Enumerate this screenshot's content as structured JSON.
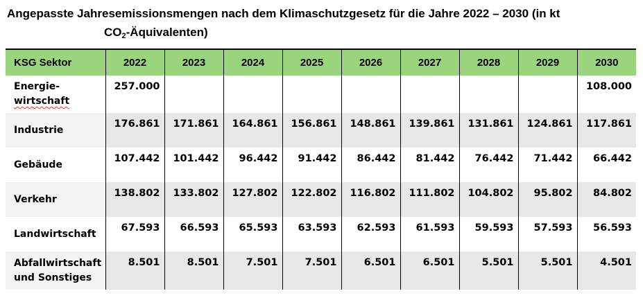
{
  "title": {
    "line1": "Angepasste Jahresemissionsmengen nach dem Klimaschutzgesetz für die Jahre 2022 – 2030 (in kt",
    "line2_pre": "CO",
    "line2_sub": "2",
    "line2_post": "-Äquivalenten)"
  },
  "table": {
    "header": {
      "sector": "KSG Sektor",
      "years": [
        "2022",
        "2023",
        "2024",
        "2025",
        "2026",
        "2027",
        "2028",
        "2029",
        "2030"
      ]
    },
    "rows": [
      {
        "sector_line1": "Energie-",
        "sector_line2": "wirtschaft",
        "values": [
          "257.000",
          "",
          "",
          "",
          "",
          "",
          "",
          "",
          "108.000"
        ]
      },
      {
        "sector_line1": "Industrie",
        "sector_line2": "",
        "values": [
          "176.861",
          "171.861",
          "164.861",
          "156.861",
          "148.861",
          "139.861",
          "131.861",
          "124.861",
          "117.861"
        ]
      },
      {
        "sector_line1": "Gebäude",
        "sector_line2": "",
        "values": [
          "107.442",
          "101.442",
          "96.442",
          "91.442",
          "86.442",
          "81.442",
          "76.442",
          "71.442",
          "66.442"
        ]
      },
      {
        "sector_line1": "Verkehr",
        "sector_line2": "",
        "values": [
          "138.802",
          "133.802",
          "127.802",
          "122.802",
          "116.802",
          "111.802",
          "104.802",
          "95.802",
          "84.802"
        ]
      },
      {
        "sector_line1": "Landwirtschaft",
        "sector_line2": "",
        "values": [
          "67.593",
          "66.593",
          "65.593",
          "63.593",
          "62.593",
          "61.593",
          "59.593",
          "57.593",
          "56.593"
        ]
      },
      {
        "sector_line1": "Abfallwirtschaft",
        "sector_line2": "und Sonstiges",
        "values": [
          "8.501",
          "8.501",
          "7.501",
          "7.501",
          "6.501",
          "6.501",
          "5.501",
          "5.501",
          "4.501"
        ]
      }
    ],
    "colors": {
      "header_bg": "#9AD57E",
      "band_cell_bg": "#E8E7E7",
      "band_label_bg": "#F2F2F2",
      "border": "#000000",
      "spellcheck_underline": "#E0342B"
    }
  }
}
